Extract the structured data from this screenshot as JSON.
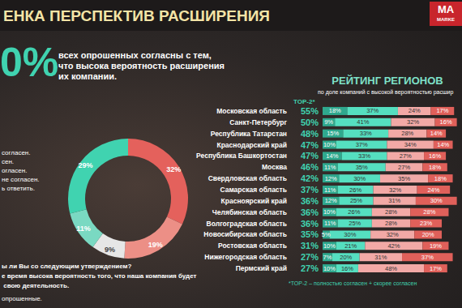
{
  "page": {
    "title": "ЕНКА ПЕРСПЕКТИВ РАСШИРЕНИЯ",
    "logo": [
      "MA",
      "MARKE"
    ],
    "headline_value": "0%",
    "headline_text": [
      "всех опрошенных согласны с тем,",
      "что высока вероятность расширения",
      "их компании."
    ],
    "legend_fragments": [
      "согласен.",
      "сен.",
      "огласен.",
      "не согласен.",
      "ь ответить."
    ],
    "question": [
      "ы ли Вы со следующим утверждением?",
      "е время высока вероятность того, что наша компания будет",
      " свою деятельность.",
      "опрошенные."
    ]
  },
  "chart_data": [
    {
      "type": "pie",
      "values": [
        32,
        19,
        9,
        11,
        29
      ],
      "value_labels": [
        "32%",
        "19%",
        "9%",
        "11%",
        "29%"
      ],
      "colors": [
        "#e4615c",
        "#ec8f86",
        "#e6e6e6",
        "#7ad9c2",
        "#40d3b0"
      ],
      "data_labels": true
    },
    {
      "type": "bar",
      "orientation": "horizontal",
      "stacked": true,
      "title": "РЕЙТИНГ РЕГИОНОВ",
      "subtitle": "по доле компаний с высокой вероятностью расшир",
      "top2_header": "TOP-2*",
      "footnote": "*TOP-2 – полностью согласен + скорее согласен",
      "categories": [
        "Московская область",
        "Санкт-Петербург",
        "Республика Татарстан",
        "Краснодарский край",
        "Республика Башкортостан",
        "Москва",
        "Свердловская область",
        "Самарская область",
        "Красноярский край",
        "Челябинская область",
        "Волгоградская область",
        "Новосибирская область",
        "Ростовская область",
        "Нижегородская область",
        "Пермский край"
      ],
      "top2_labels": [
        "55%",
        "50%",
        "48%",
        "47%",
        "47%",
        "46%",
        "42%",
        "37%",
        "36%",
        "36%",
        "36%",
        "35%",
        "31%",
        "27%",
        "27%"
      ],
      "series": [
        {
          "color": "#2fa98e",
          "values": [
            18,
            9,
            15,
            10,
            14,
            11,
            12,
            11,
            12,
            10,
            11,
            5,
            10,
            7,
            10
          ],
          "value_labels": [
            "18%",
            "9%",
            "15%",
            "10%",
            "14%",
            "11%",
            "12%",
            "11%",
            "12%",
            "10%",
            "11%",
            "5%",
            "10%",
            "7%",
            "10%"
          ]
        },
        {
          "color": "#55dfc0",
          "values": [
            37,
            41,
            33,
            37,
            33,
            35,
            30,
            26,
            25,
            26,
            25,
            30,
            21,
            20,
            16
          ],
          "value_labels": [
            "37%",
            "41%",
            "33%",
            "37%",
            "33%",
            "35%",
            "30%",
            "26%",
            "25%",
            "26%",
            "25%",
            "30%",
            "21%",
            "20%",
            "16%"
          ]
        },
        {
          "color": "#f2a9a6",
          "values": [
            24,
            32,
            28,
            34,
            27,
            27,
            35,
            32,
            31,
            28,
            28,
            32,
            42,
            31,
            48
          ],
          "value_labels": [
            "24%",
            "32%",
            "28%",
            "34%",
            "27%",
            "27%",
            "35%",
            "32%",
            "31%",
            "28%",
            "28%",
            "32%",
            "42%",
            "31%",
            "48%"
          ]
        },
        {
          "color": "#e0605a",
          "values": [
            17,
            16,
            14,
            14,
            16,
            18,
            18,
            24,
            30,
            28,
            23,
            20,
            19,
            37,
            17
          ],
          "value_labels": [
            "17%",
            "16%",
            "14%",
            "14%",
            "16%",
            "18%",
            "18%",
            "24%",
            "30%",
            "28%",
            "23%",
            "20%",
            "19%",
            "37%",
            "17%"
          ]
        }
      ],
      "xlim": [
        0,
        100
      ],
      "xticks": [
        0,
        100
      ],
      "grid": false,
      "tick_labels": false,
      "data_labels": true
    }
  ]
}
